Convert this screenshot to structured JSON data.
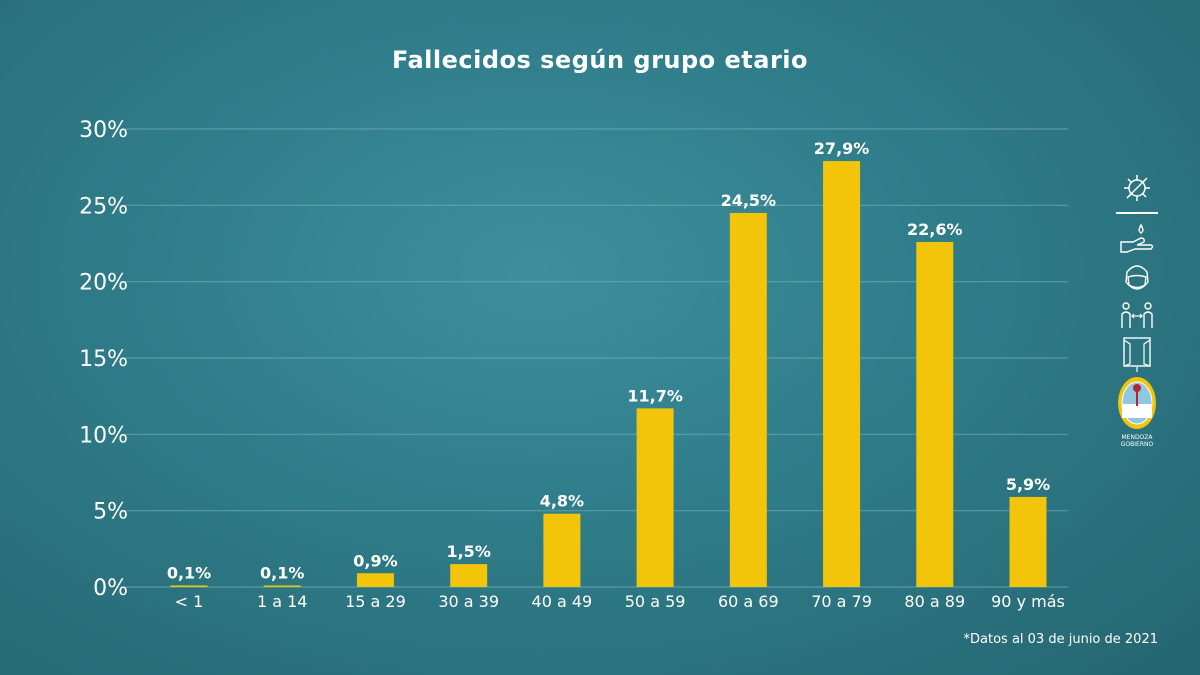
{
  "chart_data": {
    "type": "bar",
    "title": "Fallecidos según grupo etario",
    "categories": [
      "< 1",
      "1 a 14",
      "15 a 29",
      "30 a 39",
      "40 a 49",
      "50 a 59",
      "60 a 69",
      "70 a 79",
      "80 a 89",
      "90 y más"
    ],
    "values": [
      0.1,
      0.1,
      0.9,
      1.5,
      4.8,
      11.7,
      24.5,
      27.9,
      22.6,
      5.9
    ],
    "data_labels": [
      "0,1%",
      "0,1%",
      "0,9%",
      "1,5%",
      "4,8%",
      "11,7%",
      "24,5%",
      "27,9%",
      "22,6%",
      "5,9%"
    ],
    "yticks": [
      0,
      5,
      10,
      15,
      20,
      25,
      30
    ],
    "ytick_labels": [
      "0%",
      "5%",
      "10%",
      "15%",
      "20%",
      "25%",
      "30%"
    ],
    "ylim": [
      0,
      30
    ],
    "xlabel": "",
    "ylabel": "",
    "grid": true,
    "bar_color": "#f2c40a"
  },
  "footnote": "*Datos al 03 de junio de 2021",
  "side_icons": [
    "virus-icon",
    "handwash-icon",
    "face-mask-icon",
    "social-distance-icon",
    "window-ventilation-icon",
    "mendoza-seal-icon"
  ],
  "seal_text": [
    "MENDOZA",
    "GOBIERNO"
  ]
}
